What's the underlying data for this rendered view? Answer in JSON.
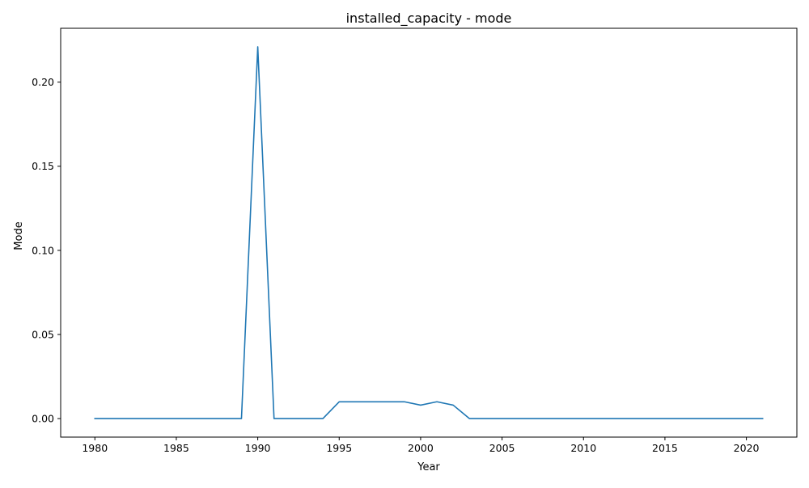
{
  "chart_data": {
    "type": "line",
    "title": "installed_capacity - mode",
    "xlabel": "Year",
    "ylabel": "Mode",
    "xlim": [
      1977.9,
      2023.1
    ],
    "ylim": [
      -0.011,
      0.232
    ],
    "x_ticks": [
      1980,
      1985,
      1990,
      1995,
      2000,
      2005,
      2010,
      2015,
      2020
    ],
    "x_tick_labels": [
      "1980",
      "1985",
      "1990",
      "1995",
      "2000",
      "2005",
      "2010",
      "2015",
      "2020"
    ],
    "y_ticks": [
      0.0,
      0.05,
      0.1,
      0.15,
      0.2
    ],
    "y_tick_labels": [
      "0.00",
      "0.05",
      "0.10",
      "0.15",
      "0.20"
    ],
    "grid": false,
    "legend": null,
    "series": [
      {
        "color": "#1f77b4",
        "x": [
          1980,
          1981,
          1982,
          1983,
          1984,
          1985,
          1986,
          1987,
          1988,
          1989,
          1990,
          1991,
          1992,
          1993,
          1994,
          1995,
          1996,
          1997,
          1998,
          1999,
          2000,
          2001,
          2002,
          2003,
          2004,
          2005,
          2006,
          2007,
          2008,
          2009,
          2010,
          2011,
          2012,
          2013,
          2014,
          2015,
          2016,
          2017,
          2018,
          2019,
          2020,
          2021
        ],
        "values": [
          0,
          0,
          0,
          0,
          0,
          0,
          0,
          0,
          0,
          0,
          0.221,
          0,
          0,
          0,
          0,
          0.01,
          0.01,
          0.01,
          0.01,
          0.01,
          0.008,
          0.01,
          0.008,
          0,
          0,
          0,
          0,
          0,
          0,
          0,
          0,
          0,
          0,
          0,
          0,
          0,
          0,
          0,
          0,
          0,
          0,
          0
        ]
      }
    ]
  }
}
